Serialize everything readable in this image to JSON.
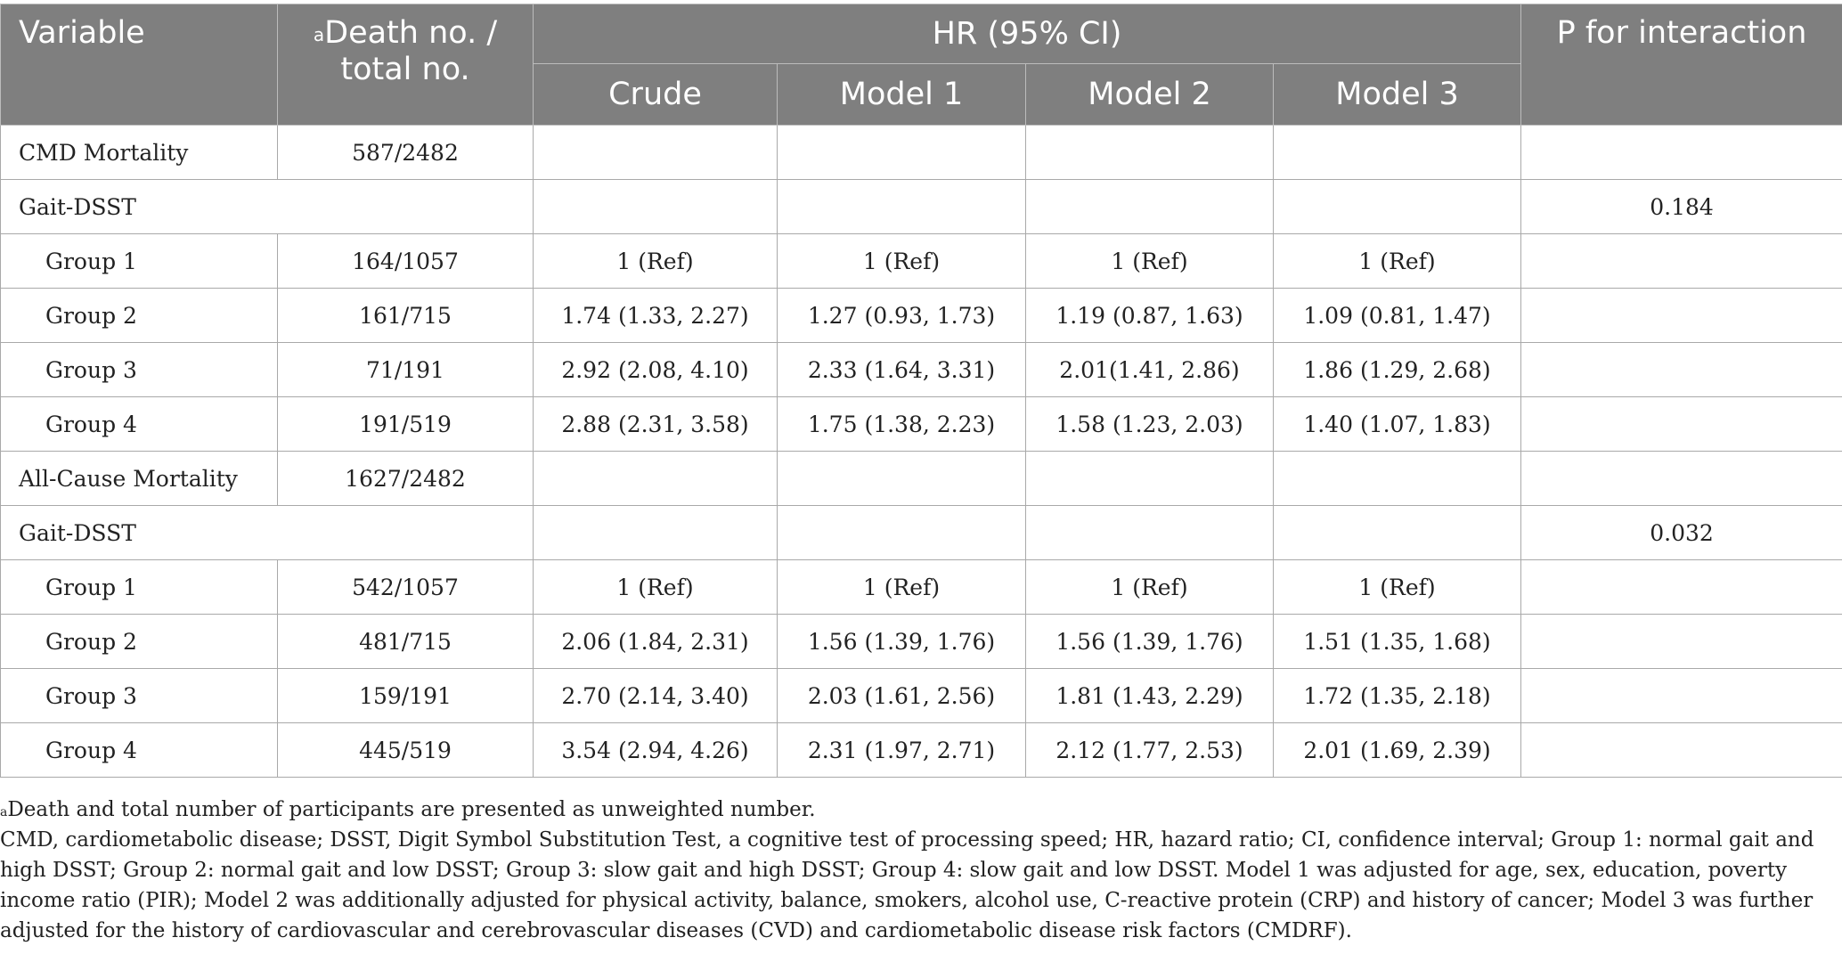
{
  "header": {
    "variable": "Variable",
    "death_sup": "a",
    "death_label_line1": "Death no. /",
    "death_label_line2": "total no.",
    "hr_group": "HR (95% CI)",
    "p_interaction": "P for interaction",
    "models": [
      "Crude",
      "Model 1",
      "Model 2",
      "Model 3"
    ]
  },
  "rows": [
    {
      "label": "CMD Mortality",
      "death": "587/2482",
      "crude": "",
      "m1": "",
      "m2": "",
      "m3": "",
      "p": ""
    },
    {
      "label": "Gait-DSST",
      "death": "",
      "crude": "",
      "m1": "",
      "m2": "",
      "m3": "",
      "p": "0.184"
    },
    {
      "label": "Group 1",
      "death": "164/1057",
      "crude": "1 (Ref)",
      "m1": "1 (Ref)",
      "m2": "1 (Ref)",
      "m3": "1 (Ref)",
      "p": ""
    },
    {
      "label": "Group 2",
      "death": "161/715",
      "crude": "1.74 (1.33, 2.27)",
      "m1": "1.27 (0.93, 1.73)",
      "m2": "1.19 (0.87, 1.63)",
      "m3": "1.09 (0.81, 1.47)",
      "p": ""
    },
    {
      "label": "Group 3",
      "death": "71/191",
      "crude": "2.92 (2.08, 4.10)",
      "m1": "2.33 (1.64, 3.31)",
      "m2": "2.01(1.41, 2.86)",
      "m3": "1.86 (1.29, 2.68)",
      "p": ""
    },
    {
      "label": "Group 4",
      "death": "191/519",
      "crude": "2.88 (2.31, 3.58)",
      "m1": "1.75 (1.38, 2.23)",
      "m2": "1.58 (1.23, 2.03)",
      "m3": "1.40 (1.07, 1.83)",
      "p": ""
    },
    {
      "label": "All-Cause Mortality",
      "death": "1627/2482",
      "crude": "",
      "m1": "",
      "m2": "",
      "m3": "",
      "p": ""
    },
    {
      "label": "Gait-DSST",
      "death": "",
      "crude": "",
      "m1": "",
      "m2": "",
      "m3": "",
      "p": "0.032"
    },
    {
      "label": "Group 1",
      "death": "542/1057",
      "crude": "1 (Ref)",
      "m1": "1 (Ref)",
      "m2": "1 (Ref)",
      "m3": "1 (Ref)",
      "p": ""
    },
    {
      "label": "Group 2",
      "death": "481/715",
      "crude": "2.06 (1.84, 2.31)",
      "m1": "1.56 (1.39, 1.76)",
      "m2": "1.56 (1.39, 1.76)",
      "m3": "1.51 (1.35, 1.68)",
      "p": ""
    },
    {
      "label": "Group 3",
      "death": "159/191",
      "crude": "2.70 (2.14, 3.40)",
      "m1": "2.03 (1.61, 2.56)",
      "m2": "1.81 (1.43, 2.29)",
      "m3": "1.72 (1.35, 2.18)",
      "p": ""
    },
    {
      "label": "Group 4",
      "death": "445/519",
      "crude": "3.54 (2.94, 4.26)",
      "m1": "2.31 (1.97, 2.71)",
      "m2": "2.12 (1.77, 2.53)",
      "m3": "2.01 (1.69, 2.39)",
      "p": ""
    }
  ],
  "footnotes": {
    "note_a_sup": "a",
    "note_a": "Death and total number of participants are presented as unweighted number.",
    "abbreviations": "CMD, cardiometabolic disease; DSST, Digit Symbol Substitution Test, a cognitive test of processing speed; HR, hazard ratio; CI, confidence interval; Group 1: normal gait and high DSST; Group 2: normal gait and low DSST; Group 3: slow gait and high DSST; Group 4: slow gait and low DSST. Model 1 was adjusted for age, sex, education, poverty income ratio (PIR); Model 2 was additionally adjusted for physical activity, balance, smokers, alcohol use, C-reactive protein (CRP) and history of cancer; Model 3 was further adjusted for the history of cardiovascular and cerebrovascular diseases (CVD) and cardiometabolic disease risk factors (CMDRF)."
  }
}
